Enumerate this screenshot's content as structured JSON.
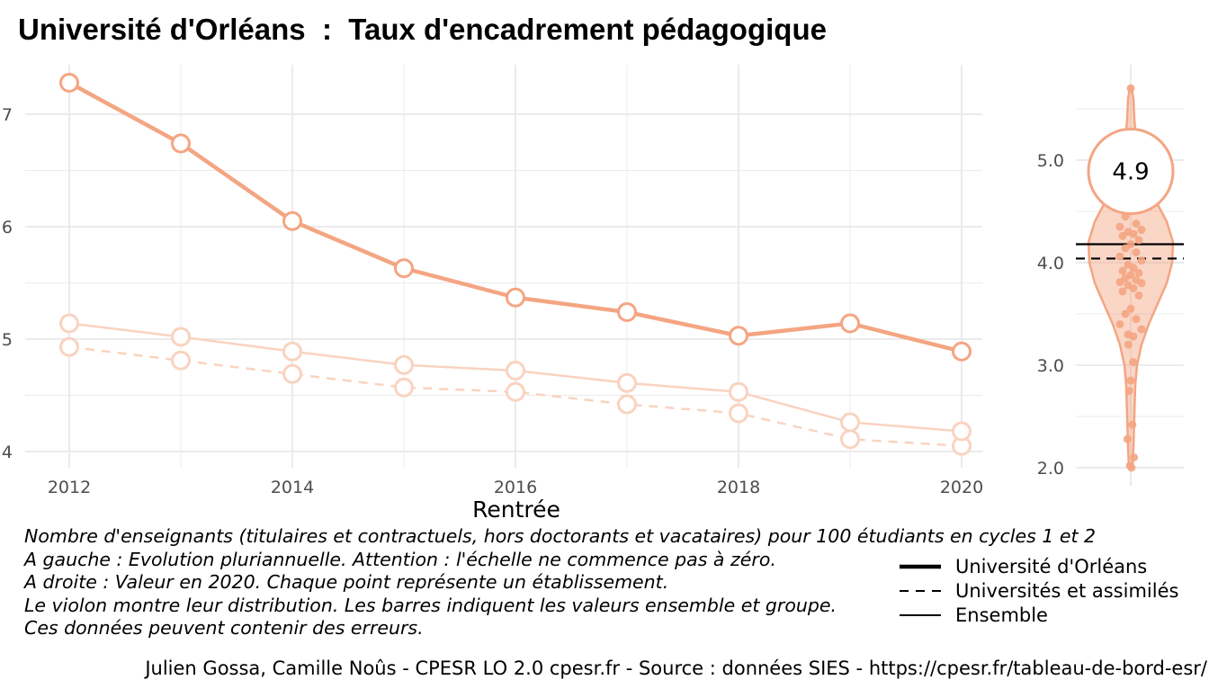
{
  "title": "Université d'Orléans  :  Taux d'encadrement pédagogique",
  "notes": [
    "Nombre d'enseignants (titulaires et contractuels, hors doctorants et vacataires) pour 100 étudiants en cycles 1 et 2",
    "A gauche : Evolution pluriannuelle. Attention : l'échelle ne commence pas à zéro.",
    "A droite : Valeur en 2020. Chaque point représente un établissement.",
    "Le violon montre leur distribution. Les barres indiquent les valeurs ensemble et groupe.",
    "Ces données peuvent contenir des erreurs."
  ],
  "caption": "Julien Gossa, Camille Noûs - CPESR LO 2.0 cpesr.fr - Source : données SIES - https://cpesr.fr/tableau-de-bord-esr/",
  "legend": [
    {
      "label": "Université d'Orléans",
      "style": "thick"
    },
    {
      "label": "Universités et assimilés",
      "style": "dashed"
    },
    {
      "label": "Ensemble",
      "style": "thin"
    }
  ],
  "colors": {
    "accent": "#F4A582",
    "accent_light": "#F9D3C0",
    "grid": "#EBEBEB",
    "tick": "#4D4D4D"
  },
  "chart_data": [
    {
      "type": "line",
      "title": "",
      "xlabel": "Rentrée",
      "ylabel": "",
      "x": [
        2012,
        2013,
        2014,
        2015,
        2016,
        2017,
        2018,
        2019,
        2020
      ],
      "xticks": [
        "2012",
        "2014",
        "2016",
        "2018",
        "2020"
      ],
      "yticks": [
        "4",
        "5",
        "6",
        "7"
      ],
      "xlim": [
        2012,
        2020
      ],
      "ylim": [
        4,
        7
      ],
      "grid": true,
      "series": [
        {
          "name": "Université d'Orléans",
          "values": [
            7.28,
            6.74,
            6.05,
            5.63,
            5.37,
            5.24,
            5.03,
            5.14,
            4.89
          ]
        },
        {
          "name": "Universités et assimilés",
          "values": [
            4.93,
            4.81,
            4.69,
            4.57,
            4.53,
            4.42,
            4.34,
            4.11,
            4.05
          ]
        },
        {
          "name": "Ensemble",
          "values": [
            5.14,
            5.02,
            4.89,
            4.77,
            4.72,
            4.61,
            4.53,
            4.26,
            4.18
          ]
        }
      ]
    },
    {
      "type": "scatter",
      "title": "",
      "value_label": "4.9",
      "highlight_value": 4.89,
      "ylim": [
        2.0,
        5.7
      ],
      "yticks": [
        "2.0",
        "3.0",
        "4.0",
        "5.0"
      ],
      "reference_lines": [
        {
          "name": "Ensemble",
          "value": 4.18,
          "style": "solid"
        },
        {
          "name": "Universités et assimilés",
          "value": 4.04,
          "style": "dashed"
        }
      ],
      "points": [
        5.7,
        4.45,
        4.38,
        4.35,
        4.32,
        4.3,
        4.28,
        4.26,
        4.22,
        4.18,
        4.14,
        4.1,
        4.06,
        4.02,
        3.98,
        3.95,
        3.92,
        3.9,
        3.88,
        3.85,
        3.83,
        3.81,
        3.8,
        3.78,
        3.75,
        3.72,
        3.68,
        3.55,
        3.5,
        3.45,
        3.4,
        3.35,
        3.3,
        3.28,
        3.2,
        3.03,
        2.85,
        2.75,
        2.42,
        2.28,
        2.1,
        2.02,
        2.0
      ]
    }
  ]
}
